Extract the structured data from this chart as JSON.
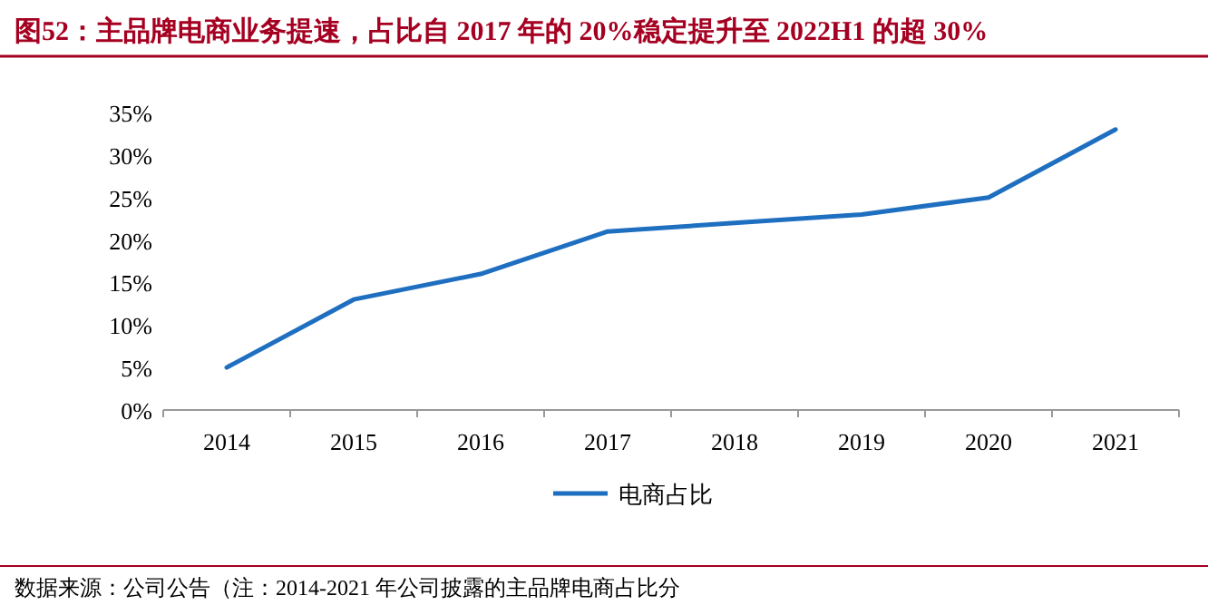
{
  "chart_data": {
    "type": "line",
    "title": "图52：主品牌电商业务提速，占比自 2017 年的 20%稳定提升至 2022H1 的超 30%",
    "categories": [
      "2014",
      "2015",
      "2016",
      "2017",
      "2018",
      "2019",
      "2020",
      "2021"
    ],
    "series": [
      {
        "name": "电商占比",
        "color": "#1f6fc0",
        "values": [
          5,
          13,
          16,
          21,
          22,
          23,
          25,
          33
        ]
      }
    ],
    "ylim": [
      0,
      35
    ],
    "yticks": [
      {
        "value": 0,
        "label": "0%"
      },
      {
        "value": 5,
        "label": "5%"
      },
      {
        "value": 10,
        "label": "10%"
      },
      {
        "value": 15,
        "label": "15%"
      },
      {
        "value": 20,
        "label": "20%"
      },
      {
        "value": 25,
        "label": "25%"
      },
      {
        "value": 30,
        "label": "30%"
      },
      {
        "value": 35,
        "label": "35%"
      }
    ],
    "legend": "bottom",
    "grid": false,
    "marker": "none",
    "line_style": "solid",
    "annotations": [
      "数据来源：公司公告（注：2014-2021 年公司披露的主品牌电商占比分"
    ]
  }
}
